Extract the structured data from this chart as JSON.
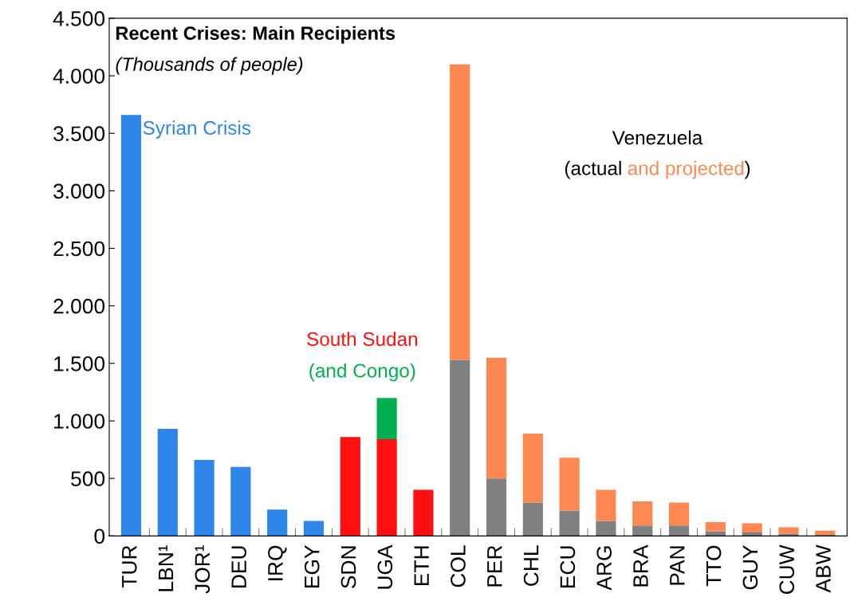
{
  "chart_data": {
    "type": "bar",
    "stacked": true,
    "title": "Recent Crises: Main Recipients",
    "subtitle": "(Thousands of people)",
    "categories": [
      "TUR",
      "LBN¹",
      "JOR¹",
      "DEU",
      "IRQ",
      "EGY",
      "SDN",
      "UGA",
      "ETH",
      "COL",
      "PER",
      "CHL",
      "ECU",
      "ARG",
      "BRA",
      "PAN",
      "TTO",
      "GUY",
      "CUW",
      "ABW"
    ],
    "series": [
      {
        "values": [
          3660,
          930,
          660,
          600,
          230,
          130,
          860,
          840,
          400,
          1530,
          500,
          290,
          220,
          130,
          90,
          90,
          40,
          30,
          20,
          10
        ],
        "colors": [
          "#2e86ea",
          "#2e86ea",
          "#2e86ea",
          "#2e86ea",
          "#2e86ea",
          "#2e86ea",
          "#ff0f0f",
          "#ff0f0f",
          "#ff0f0f",
          "#808080",
          "#808080",
          "#808080",
          "#808080",
          "#808080",
          "#808080",
          "#808080",
          "#808080",
          "#808080",
          "#808080",
          "#808080"
        ]
      },
      {
        "values": [
          null,
          null,
          null,
          null,
          null,
          null,
          null,
          360,
          null,
          2570,
          1050,
          600,
          460,
          270,
          210,
          200,
          80,
          80,
          55,
          35
        ],
        "colors": [
          null,
          null,
          null,
          null,
          null,
          null,
          null,
          "#00b050",
          null,
          "#ff8752",
          "#ff8752",
          "#ff8752",
          "#ff8752",
          "#ff8752",
          "#ff8752",
          "#ff8752",
          "#ff8752",
          "#ff8752",
          "#ff8752",
          "#ff8752"
        ]
      }
    ],
    "ylim": [
      0,
      4500
    ],
    "yticks": [
      0,
      500,
      {
        "value": 1000,
        "label": "1.000"
      },
      {
        "value": 1500,
        "label": "1.500"
      },
      {
        "value": 2000,
        "label": "2.000"
      },
      {
        "value": 2500,
        "label": "2.500"
      },
      {
        "value": 3000,
        "label": "3.000"
      },
      {
        "value": 3500,
        "label": "3.500"
      },
      {
        "value": 4000,
        "label": "4.000"
      },
      {
        "value": 4500,
        "label": "4.500"
      }
    ],
    "grid": false,
    "annotations": [
      "Syrian Crisis",
      "South Sudan",
      "(and Congo)",
      "Venezuela",
      "(actual ",
      "and projected",
      ")"
    ]
  }
}
